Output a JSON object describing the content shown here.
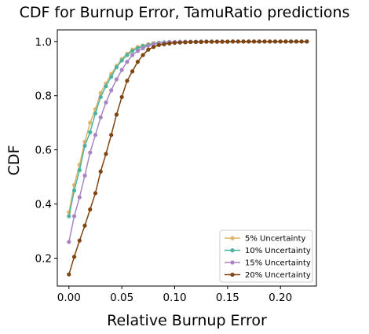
{
  "chart_data": {
    "type": "line",
    "title": "CDF for Burnup Error, TamuRatio predictions",
    "xlabel": "Relative Burnup Error",
    "ylabel": "CDF",
    "xlim": [
      -0.011,
      0.234
    ],
    "ylim": [
      0.097,
      1.043
    ],
    "xticks": [
      "0.00",
      "0.05",
      "0.10",
      "0.15",
      "0.20"
    ],
    "yticks": [
      "0.2",
      "0.4",
      "0.6",
      "0.8",
      "1.0"
    ],
    "grid": false,
    "legend_position": "lower-right",
    "x": [
      0.0,
      0.005,
      0.01,
      0.015,
      0.02,
      0.025,
      0.03,
      0.035,
      0.04,
      0.045,
      0.05,
      0.055,
      0.06,
      0.065,
      0.07,
      0.075,
      0.08,
      0.085,
      0.09,
      0.095,
      0.1,
      0.105,
      0.11,
      0.115,
      0.12,
      0.125,
      0.13,
      0.135,
      0.14,
      0.145,
      0.15,
      0.155,
      0.16,
      0.165,
      0.17,
      0.175,
      0.18,
      0.185,
      0.19,
      0.195,
      0.2,
      0.205,
      0.21,
      0.215,
      0.22,
      0.225
    ],
    "series": [
      {
        "name": "5% Uncertainty",
        "color": "#dbb468",
        "values": [
          0.37,
          0.47,
          0.545,
          0.63,
          0.7,
          0.75,
          0.81,
          0.845,
          0.88,
          0.91,
          0.935,
          0.955,
          0.97,
          0.98,
          0.985,
          0.99,
          0.994,
          0.996,
          0.997,
          0.998,
          0.998,
          0.999,
          0.999,
          0.999,
          0.999,
          1.0,
          1.0,
          1.0,
          1.0,
          1.0,
          1.0,
          1.0,
          1.0,
          1.0,
          1.0,
          1.0,
          1.0,
          1.0,
          1.0,
          1.0,
          1.0,
          1.0,
          1.0,
          1.0,
          1.0,
          1.0
        ]
      },
      {
        "name": "10% Uncertainty",
        "color": "#4fb1a2",
        "values": [
          0.355,
          0.45,
          0.525,
          0.615,
          0.665,
          0.735,
          0.795,
          0.835,
          0.87,
          0.905,
          0.93,
          0.95,
          0.965,
          0.975,
          0.983,
          0.988,
          0.992,
          0.995,
          0.997,
          0.998,
          0.998,
          0.999,
          0.999,
          0.999,
          0.999,
          1.0,
          1.0,
          1.0,
          1.0,
          1.0,
          1.0,
          1.0,
          1.0,
          1.0,
          1.0,
          1.0,
          1.0,
          1.0,
          1.0,
          1.0,
          1.0,
          1.0,
          1.0,
          1.0,
          1.0,
          1.0
        ]
      },
      {
        "name": "15% Uncertainty",
        "color": "#a885c2",
        "values": [
          0.26,
          0.355,
          0.425,
          0.505,
          0.59,
          0.655,
          0.72,
          0.775,
          0.82,
          0.86,
          0.895,
          0.925,
          0.95,
          0.965,
          0.975,
          0.985,
          0.99,
          0.993,
          0.995,
          0.997,
          0.998,
          0.998,
          0.999,
          0.999,
          0.999,
          1.0,
          1.0,
          1.0,
          1.0,
          1.0,
          1.0,
          1.0,
          1.0,
          1.0,
          1.0,
          1.0,
          1.0,
          1.0,
          1.0,
          1.0,
          1.0,
          1.0,
          1.0,
          1.0,
          1.0,
          1.0
        ]
      },
      {
        "name": "20% Uncertainty",
        "color": "#7f4410",
        "values": [
          0.14,
          0.205,
          0.265,
          0.32,
          0.38,
          0.44,
          0.52,
          0.585,
          0.655,
          0.73,
          0.795,
          0.855,
          0.89,
          0.925,
          0.95,
          0.97,
          0.98,
          0.987,
          0.99,
          0.993,
          0.995,
          0.996,
          0.997,
          0.998,
          0.998,
          0.998,
          0.999,
          0.999,
          0.999,
          0.999,
          0.999,
          1.0,
          1.0,
          1.0,
          1.0,
          1.0,
          1.0,
          1.0,
          1.0,
          1.0,
          1.0,
          1.0,
          1.0,
          1.0,
          1.0,
          1.0
        ]
      }
    ]
  }
}
